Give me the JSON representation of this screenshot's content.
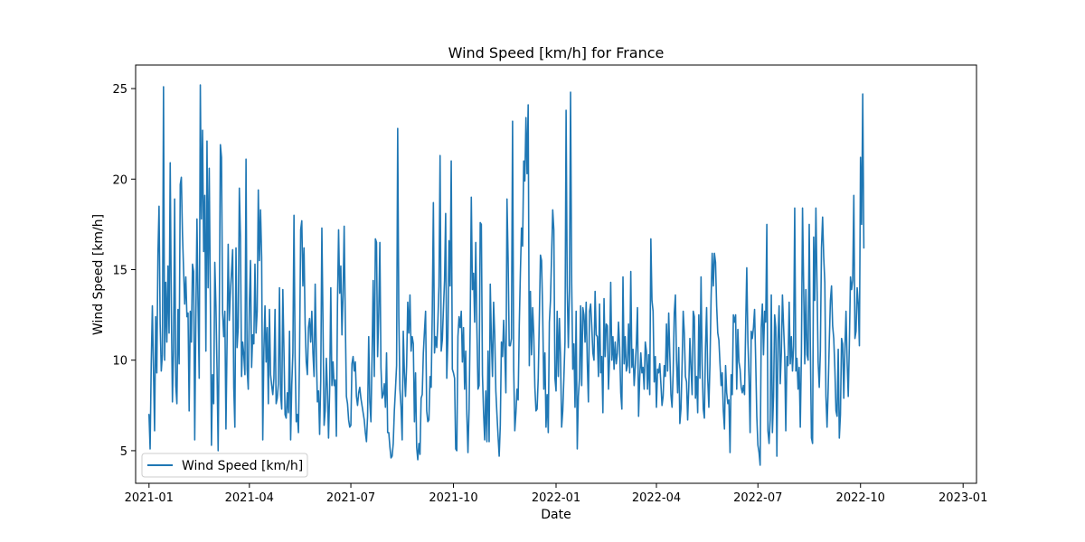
{
  "chart_data": {
    "type": "line",
    "title": "Wind Speed [km/h] for France",
    "xlabel": "Date",
    "ylabel": "Wind Speed [km/h]",
    "xlim": [
      "2020-12-20",
      "2023-01-13"
    ],
    "ylim": [
      3.2,
      26.3
    ],
    "x_ticks": [
      "2021-01",
      "2021-04",
      "2021-07",
      "2021-10",
      "2022-01",
      "2022-04",
      "2022-07",
      "2022-10",
      "2023-01"
    ],
    "y_ticks": [
      5,
      10,
      15,
      20,
      25
    ],
    "grid": false,
    "legend": "lower-left",
    "series": [
      {
        "name": "Wind Speed [km/h]",
        "color": "#1f77b4",
        "x_start": "2021-01-01",
        "x_step_days": 1,
        "values": [
          7.0,
          5.1,
          9.8,
          13.0,
          9.5,
          6.1,
          12.4,
          9.3,
          15.8,
          18.5,
          12.0,
          9.4,
          10.3,
          25.1,
          10.0,
          14.3,
          11.0,
          15.2,
          11.5,
          20.9,
          13.0,
          7.7,
          10.6,
          18.9,
          8.6,
          7.6,
          12.8,
          9.8,
          19.7,
          20.1,
          17.0,
          15.0,
          13.1,
          14.6,
          12.4,
          12.6,
          7.2,
          12.7,
          11.0,
          15.3,
          14.9,
          5.6,
          12.3,
          17.8,
          13.0,
          9.0,
          25.2,
          17.8,
          22.7,
          16.0,
          19.1,
          10.5,
          22.1,
          14.0,
          20.6,
          13.5,
          5.3,
          9.2,
          7.6,
          15.4,
          13.0,
          9.5,
          5.0,
          12.0,
          21.9,
          21.2,
          12.6,
          11.3,
          12.7,
          6.2,
          11.1,
          16.4,
          12.2,
          13.8,
          14.9,
          16.1,
          8.5,
          6.3,
          16.2,
          10.7,
          11.8,
          19.5,
          16.8,
          9.1,
          11.0,
          10.3,
          9.2,
          21.1,
          9.5,
          8.4,
          13.1,
          15.5,
          9.6,
          11.4,
          10.9,
          15.3,
          11.5,
          12.7,
          19.4,
          15.5,
          18.3,
          15.7,
          5.6,
          10.5,
          13.0,
          9.9,
          11.8,
          7.6,
          12.8,
          9.2,
          8.6,
          8.1,
          9.0,
          12.8,
          7.6,
          7.9,
          8.7,
          14.0,
          8.1,
          7.3,
          13.9,
          10.5,
          7.0,
          6.8,
          8.2,
          7.1,
          11.6,
          5.6,
          8.6,
          10.4,
          18.0,
          10.2,
          6.6,
          7.0,
          6.0,
          10.4,
          17.2,
          17.7,
          14.1,
          16.2,
          12.0,
          9.9,
          9.2,
          11.8,
          12.3,
          11.0,
          12.7,
          10.4,
          9.1,
          14.2,
          10.5,
          7.7,
          8.3,
          5.9,
          8.9,
          17.3,
          12.1,
          6.4,
          7.2,
          10.1,
          8.3,
          5.7,
          8.4,
          14.0,
          8.6,
          9.9,
          8.6,
          8.9,
          5.8,
          13.1,
          17.2,
          13.7,
          15.2,
          11.4,
          13.6,
          17.4,
          12.3,
          8.0,
          7.6,
          6.7,
          6.3,
          6.4,
          9.8,
          10.2,
          9.4,
          9.9,
          8.0,
          7.5,
          8.2,
          8.5,
          7.9,
          7.5,
          7.1,
          6.7,
          6.0,
          5.5,
          6.9,
          11.3,
          7.7,
          6.6,
          10.2,
          14.4,
          9.1,
          16.7,
          16.5,
          10.2,
          12.6,
          16.5,
          9.6,
          7.9,
          8.1,
          8.7,
          7.4,
          10.4,
          6.0,
          6.0,
          5.2,
          4.6,
          4.7,
          5.4,
          7.2,
          8.4,
          9.7,
          22.8,
          12.4,
          8.4,
          7.4,
          5.6,
          11.6,
          9.3,
          8.0,
          9.7,
          13.2,
          11.5,
          13.6,
          10.5,
          11.3,
          10.9,
          6.6,
          9.3,
          5.2,
          4.5,
          5.4,
          4.8,
          7.9,
          8.1,
          10.4,
          11.6,
          12.7,
          7.2,
          6.6,
          6.7,
          9.1,
          8.5,
          12.6,
          18.7,
          10.4,
          11.3,
          10.7,
          12.1,
          14.1,
          21.3,
          10.5,
          11.1,
          12.8,
          14.4,
          18.1,
          9.0,
          11.2,
          16.6,
          14.1,
          21.0,
          9.5,
          9.3,
          9.0,
          5.1,
          5.0,
          11.3,
          12.4,
          11.8,
          12.7,
          9.9,
          11.8,
          8.4,
          10.5,
          7.0,
          4.9,
          7.3,
          12.0,
          19.0,
          13.9,
          14.8,
          12.1,
          16.5,
          11.8,
          8.4,
          8.6,
          17.6,
          17.5,
          9.2,
          7.1,
          5.6,
          8.3,
          5.5,
          10.5,
          5.5,
          14.2,
          11.1,
          9.1,
          13.2,
          11.4,
          8.3,
          7.0,
          5.8,
          4.7,
          6.4,
          11.0,
          10.2,
          12.2,
          10.5,
          8.2,
          18.9,
          15.6,
          10.8,
          10.8,
          11.2,
          23.2,
          9.6,
          6.1,
          7.1,
          8.4,
          7.8,
          11.9,
          14.8,
          17.3,
          16.3,
          21.0,
          19.9,
          23.4,
          20.3,
          24.1,
          9.7,
          13.8,
          10.3,
          12.9,
          11.4,
          8.5,
          7.2,
          7.3,
          9.0,
          12.3,
          15.8,
          15.5,
          12.6,
          8.4,
          10.4,
          6.3,
          8.1,
          6.0,
          12.1,
          13.3,
          15.8,
          18.3,
          17.2,
          9.0,
          8.3,
          12.7,
          9.1,
          12.3,
          10.2,
          6.3,
          7.2,
          9.0,
          11.0,
          23.8,
          14.1,
          10.7,
          13.8,
          24.8,
          14.3,
          9.5,
          10.9,
          7.4,
          12.7,
          5.1,
          8.0,
          9.0,
          13.0,
          8.6,
          12.9,
          12.5,
          11.0,
          13.2,
          9.9,
          7.7,
          12.7,
          13.1,
          11.9,
          10.4,
          10.0,
          13.8,
          11.4,
          11.3,
          9.1,
          13.1,
          9.3,
          10.2,
          7.1,
          13.4,
          10.2,
          12.0,
          11.9,
          8.4,
          10.2,
          14.3,
          10.0,
          11.3,
          9.5,
          11.0,
          9.8,
          10.4,
          12.1,
          10.7,
          8.2,
          7.3,
          14.6,
          9.8,
          11.3,
          9.4,
          9.7,
          12.0,
          9.3,
          14.9,
          9.6,
          10.6,
          8.6,
          9.6,
          10.9,
          12.9,
          6.9,
          9.0,
          10.4,
          9.3,
          9.6,
          8.4,
          11.0,
          10.5,
          8.4,
          10.3,
          8.1,
          16.7,
          13.3,
          12.7,
          8.8,
          10.2,
          7.4,
          9.5,
          9.3,
          9.8,
          8.7,
          7.5,
          8.0,
          9.7,
          9.1,
          12.0,
          9.4,
          12.6,
          10.3,
          8.1,
          7.4,
          9.3,
          12.6,
          13.6,
          10.0,
          8.2,
          10.7,
          6.5,
          7.3,
          9.7,
          12.7,
          11.5,
          9.1,
          8.8,
          6.7,
          8.5,
          11.2,
          9.6,
          8.1,
          12.7,
          12.4,
          7.9,
          9.1,
          7.1,
          12.5,
          9.0,
          14.6,
          9.8,
          7.3,
          6.8,
          10.7,
          12.9,
          9.0,
          7.4,
          9.8,
          13.4,
          15.9,
          14.1,
          15.9,
          15.4,
          13.0,
          11.5,
          11.1,
          9.8,
          8.6,
          9.3,
          7.2,
          6.2,
          9.7,
          8.2,
          7.6,
          7.8,
          4.9,
          9.2,
          8.1,
          12.5,
          12.1,
          12.5,
          8.4,
          11.7,
          9.9,
          9.5,
          8.5,
          8.2,
          8.6,
          8.1,
          11.8,
          15.1,
          11.1,
          9.1,
          6.0,
          11.6,
          11.2,
          11.8,
          12.8,
          10.0,
          6.9,
          5.3,
          4.9,
          4.2,
          11.8,
          13.1,
          10.3,
          12.7,
          12.1,
          17.5,
          6.1,
          5.4,
          6.7,
          13.6,
          6.0,
          8.0,
          12.5,
          11.8,
          4.7,
          11.1,
          13.0,
          8.7,
          10.4,
          13.6,
          11.9,
          10.3,
          6.1,
          10.2,
          9.7,
          13.2,
          9.8,
          11.3,
          9.4,
          10.8,
          18.4,
          9.4,
          10.1,
          8.4,
          9.6,
          6.3,
          10.4,
          18.4,
          14.1,
          9.8,
          13.9,
          10.3,
          10.0,
          17.5,
          10.8,
          5.7,
          5.4,
          16.8,
          13.3,
          18.4,
          14.2,
          9.9,
          8.5,
          10.5,
          16.2,
          17.9,
          15.7,
          14.3,
          8.0,
          6.3,
          8.4,
          11.0,
          13.3,
          14.1,
          11.9,
          11.2,
          9.5,
          7.2,
          6.9,
          10.6,
          5.7,
          7.0,
          11.2,
          10.9,
          7.9,
          10.6,
          12.7,
          9.9,
          8.0,
          10.9,
          14.6,
          13.9,
          14.4,
          19.1,
          11.2,
          11.6,
          14.0,
          13.1,
          10.8,
          21.2,
          17.5,
          24.7,
          16.2
        ]
      }
    ]
  }
}
